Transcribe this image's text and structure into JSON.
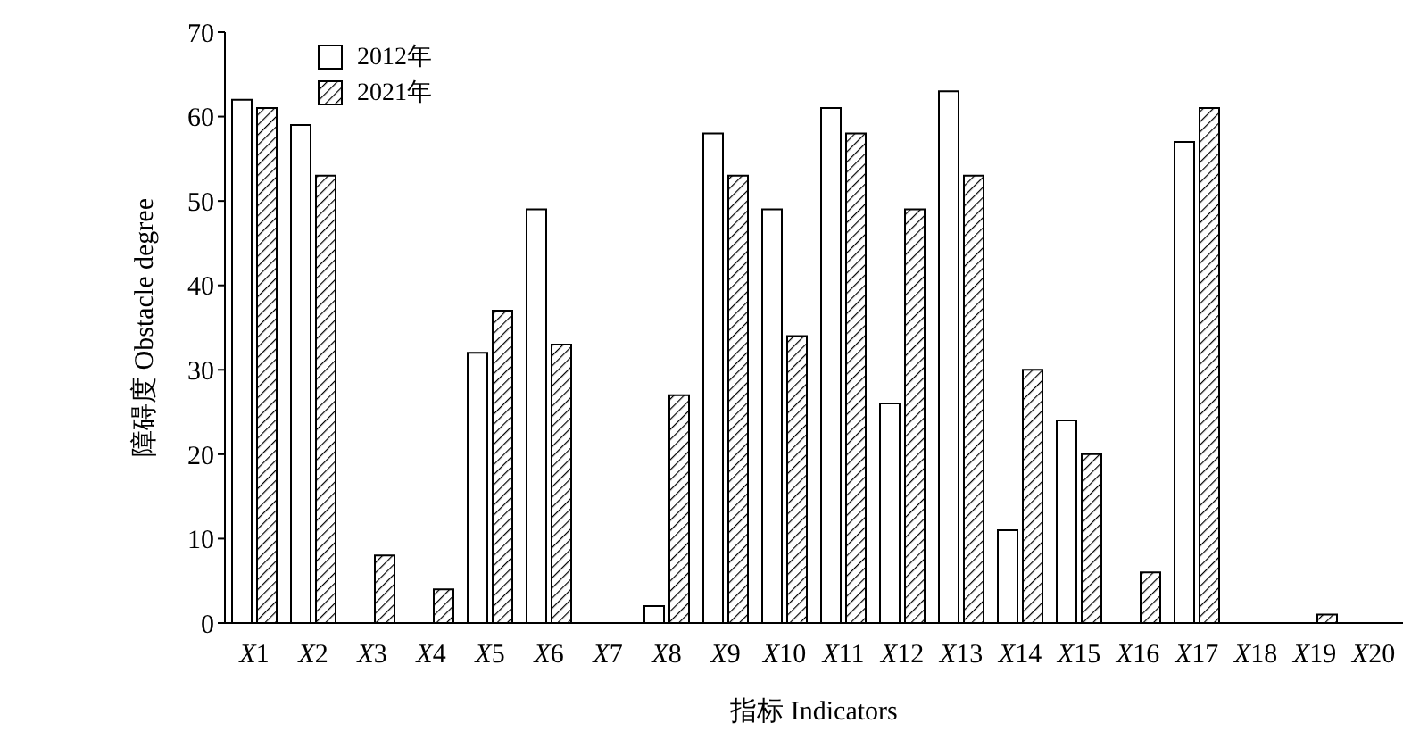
{
  "chart_data": {
    "type": "bar",
    "xlabel": "指标 Indicators",
    "ylabel": "障碍度 Obstacle degree",
    "categories": [
      "X1",
      "X2",
      "X3",
      "X4",
      "X5",
      "X6",
      "X7",
      "X8",
      "X9",
      "X10",
      "X11",
      "X12",
      "X13",
      "X14",
      "X15",
      "X16",
      "X17",
      "X18",
      "X19",
      "X20"
    ],
    "series": [
      {
        "name": "2012年",
        "color": "#ffffff",
        "values": [
          62,
          59,
          0,
          0,
          32,
          49,
          0,
          2,
          58,
          49,
          61,
          26,
          63,
          11,
          24,
          0,
          57,
          0,
          0,
          0
        ]
      },
      {
        "name": "2021年",
        "color": "#000000",
        "values": [
          61,
          53,
          8,
          4,
          37,
          33,
          0,
          27,
          53,
          34,
          58,
          49,
          53,
          30,
          20,
          6,
          61,
          0,
          1,
          0
        ]
      }
    ],
    "ylim": [
      0,
      70
    ],
    "yticks": [
      0,
      10,
      20,
      30,
      40,
      50,
      60,
      70
    ],
    "grid": false,
    "legend": "top left"
  }
}
